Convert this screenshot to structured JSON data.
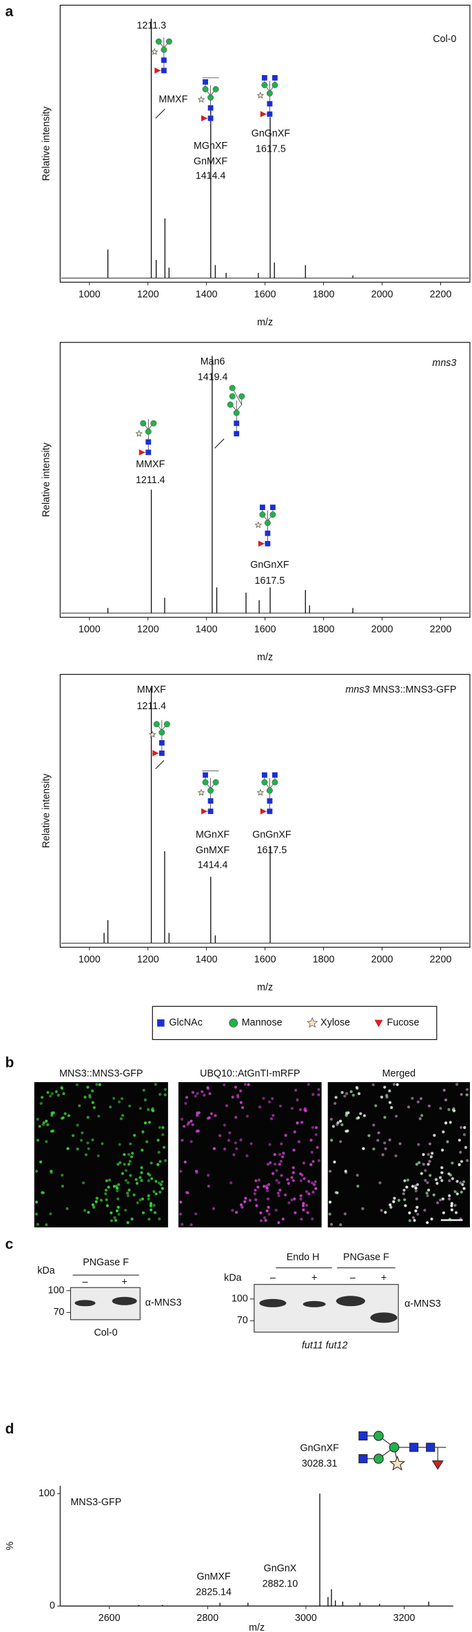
{
  "panel_labels": [
    "a",
    "b",
    "c",
    "d"
  ],
  "chart_data": [
    {
      "type": "spectrum",
      "title_parts": [
        {
          "text": "Col-0",
          "italic": false
        }
      ],
      "xlabel": "m/z",
      "ylabel": "Relative intensity",
      "color": "#111111",
      "xlim": [
        900,
        2300
      ],
      "xticks": [
        1000,
        1200,
        1400,
        1600,
        1800,
        2000,
        2200
      ],
      "x": [
        1063,
        1211.3,
        1228,
        1258,
        1272,
        1414.4,
        1430,
        1467,
        1577,
        1617.5,
        1632,
        1738,
        1900
      ],
      "values": [
        11,
        100,
        7,
        23,
        4,
        66,
        5,
        2,
        2,
        62,
        6,
        5,
        1
      ],
      "annotations": [
        {
          "lines": [
            "MMXF"
          ],
          "mz": 1211.3
        },
        {
          "lines": [
            "MGnXF",
            "GnMXF"
          ],
          "mz": 1414.4
        },
        {
          "lines": [
            "GnGnXF"
          ],
          "mz": 1617.5
        }
      ]
    },
    {
      "type": "spectrum",
      "title_parts": [
        {
          "text": "mns3",
          "italic": true
        }
      ],
      "xlabel": "m/z",
      "ylabel": "Relative intensity",
      "color": "#111111",
      "xlim": [
        900,
        2300
      ],
      "xticks": [
        1000,
        1200,
        1400,
        1600,
        1800,
        2000,
        2200
      ],
      "x": [
        1063,
        1211.4,
        1257,
        1419.4,
        1435,
        1535,
        1580,
        1617.5,
        1738,
        1752,
        1900
      ],
      "values": [
        2,
        48,
        6,
        100,
        10,
        8,
        5,
        10,
        9,
        3,
        2
      ],
      "annotations": [
        {
          "lines": [
            "Man6"
          ],
          "mz": 1419.4
        },
        {
          "lines": [
            "MMXF"
          ],
          "mz": 1211.4
        },
        {
          "lines": [
            "GnGnXF"
          ],
          "mz": 1617.5
        }
      ]
    },
    {
      "type": "spectrum",
      "title_parts": [
        {
          "text": "mns3",
          "italic": true
        },
        {
          "text": "MNS3::MNS3-GFP",
          "italic": false
        }
      ],
      "xlabel": "m/z",
      "ylabel": "Relative intensity",
      "color": "#111111",
      "xlim": [
        900,
        2300
      ],
      "xticks": [
        1000,
        1200,
        1400,
        1600,
        1800,
        2000,
        2200
      ],
      "x": [
        1050,
        1063,
        1211.4,
        1257,
        1272,
        1414.4,
        1430,
        1617.5
      ],
      "values": [
        4,
        9,
        100,
        36,
        4,
        26,
        3,
        38
      ],
      "annotations": [
        {
          "lines": [
            "MMXF"
          ],
          "mz": 1211.4
        },
        {
          "lines": [
            "MGnXF",
            "GnMXF"
          ],
          "mz": 1414.4
        },
        {
          "lines": [
            "GnGnXF"
          ],
          "mz": 1617.5
        }
      ]
    },
    {
      "type": "spectrum",
      "title_parts": [
        {
          "text": "MNS3-GFP",
          "italic": false
        }
      ],
      "xlabel": "m/z",
      "ylabel": "%",
      "color": "#111111",
      "xlim": [
        2500,
        3300
      ],
      "xticks": [
        2600,
        2800,
        3000,
        3200
      ],
      "ylim": [
        0,
        107
      ],
      "yticks": [
        0,
        100
      ],
      "x": [
        2660,
        2708,
        2825.14,
        2882.1,
        3028.31,
        3045,
        3052,
        3060,
        3075,
        3110,
        3150,
        3250
      ],
      "values": [
        1,
        1,
        3,
        3,
        100,
        8,
        15,
        5,
        4,
        3,
        2,
        4
      ],
      "annotations": [
        {
          "lines": [
            "GnGnXF"
          ],
          "mz": 3028.31
        },
        {
          "lines": [
            "GnMXF"
          ],
          "mz": 2825.14
        },
        {
          "lines": [
            "GnGnX"
          ],
          "mz": {
            "value": 2882.1,
            "label": "2882.10"
          }
        }
      ]
    }
  ],
  "glycan_legend": [
    {
      "name": "GlcNAc",
      "color": "#1a2fd6"
    },
    {
      "name": "Mannose",
      "color": "#22b14c"
    },
    {
      "name": "Xylose",
      "color": "#f6e3c0"
    },
    {
      "name": "Fucose",
      "color": "#d42020"
    }
  ],
  "microscopy": {
    "labels": [
      "MNS3::MNS3-GFP",
      "UBQ10::AtGnTI-mRFP",
      "Merged"
    ]
  },
  "blots": [
    {
      "headers": [
        "PNGase F"
      ],
      "lanes": [
        "–",
        "+"
      ],
      "kda": "kDa",
      "markers": [
        100,
        70
      ],
      "antibody": "α-MNS3",
      "sample": "Col-0"
    },
    {
      "headers": [
        "Endo H",
        "PNGase F"
      ],
      "lanes": [
        "–",
        "+",
        "–",
        "+"
      ],
      "kda": "kDa",
      "markers": [
        100,
        70
      ],
      "antibody": "α-MNS3",
      "sample": "fut11 fut12"
    }
  ]
}
